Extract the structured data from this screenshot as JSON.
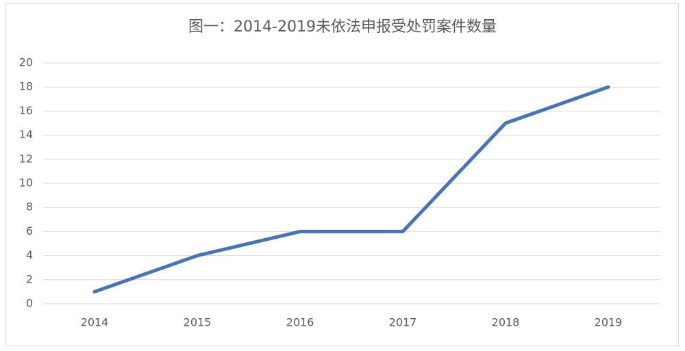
{
  "chart_data": {
    "type": "line",
    "title": "图一：2014-2019未依法申报受处罚案件数量",
    "categories": [
      "2014",
      "2015",
      "2016",
      "2017",
      "2018",
      "2019"
    ],
    "values": [
      1,
      4,
      6,
      6,
      15,
      18
    ],
    "color": "#4472c4",
    "ylim": [
      0,
      20
    ],
    "yticks": [
      0,
      2,
      4,
      6,
      8,
      10,
      12,
      14,
      16,
      18,
      20
    ],
    "grid": true
  }
}
